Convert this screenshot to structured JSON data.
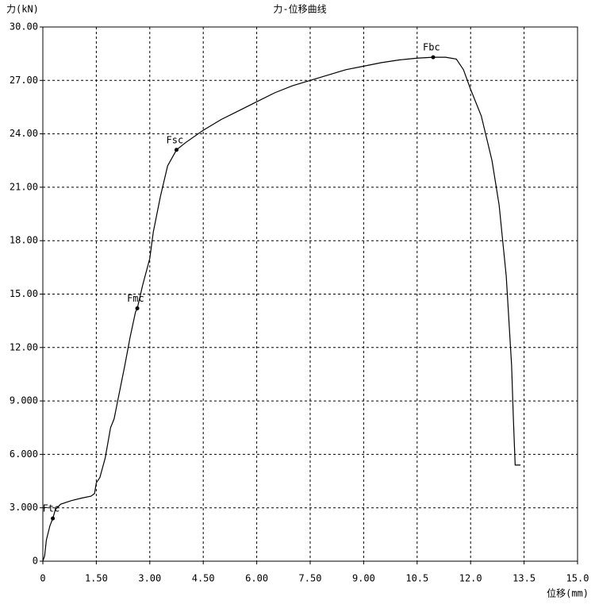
{
  "chart_data": {
    "type": "line",
    "title": "力-位移曲线",
    "x_label": "位移(mm)",
    "y_label": "力(kN)",
    "color": "#000000",
    "grid": true,
    "x": [
      0,
      0.05,
      0.1,
      0.2,
      0.28,
      0.35,
      0.5,
      0.8,
      1.1,
      1.35,
      1.45,
      1.5,
      1.6,
      1.75,
      1.9,
      2.0,
      2.2,
      2.3,
      2.45,
      2.6,
      2.65,
      2.8,
      3.0,
      3.1,
      3.3,
      3.5,
      3.75,
      4.0,
      4.5,
      5.0,
      5.5,
      6.0,
      6.5,
      7.0,
      7.5,
      8.0,
      8.5,
      9.0,
      9.5,
      10.0,
      10.5,
      10.95,
      11.3,
      11.6,
      11.8,
      12.0,
      12.3,
      12.6,
      12.8,
      13.0,
      13.15,
      13.2,
      13.25,
      13.4
    ],
    "values": [
      0,
      0.3,
      1.2,
      2.0,
      2.4,
      2.9,
      3.2,
      3.4,
      3.55,
      3.65,
      3.8,
      4.4,
      4.7,
      5.8,
      7.5,
      8.0,
      10.0,
      11.0,
      12.6,
      14.0,
      14.2,
      15.5,
      17.0,
      18.5,
      20.5,
      22.2,
      23.1,
      23.5,
      24.2,
      24.8,
      25.3,
      25.8,
      26.3,
      26.7,
      27.0,
      27.3,
      27.6,
      27.8,
      28.0,
      28.15,
      28.25,
      28.3,
      28.3,
      28.2,
      27.6,
      26.5,
      25.0,
      22.5,
      20.0,
      16.0,
      11.0,
      8.0,
      5.4,
      5.4
    ],
    "annotations": [
      {
        "text": "Ftc",
        "x": 0.28,
        "y": 2.4
      },
      {
        "text": "Fmc",
        "x": 2.65,
        "y": 14.2
      },
      {
        "text": "Fsc",
        "x": 3.75,
        "y": 23.1
      },
      {
        "text": "Fbc",
        "x": 10.95,
        "y": 28.3
      }
    ],
    "xlim": [
      0,
      15
    ],
    "ylim": [
      0,
      30
    ],
    "xticks": [
      0,
      {
        "value": 1.5,
        "label": "1.50"
      },
      {
        "value": 3,
        "label": "3.00"
      },
      {
        "value": 4.5,
        "label": "4.50"
      },
      {
        "value": 6,
        "label": "6.00"
      },
      {
        "value": 7.5,
        "label": "7.50"
      },
      {
        "value": 9,
        "label": "9.00"
      },
      10.5,
      {
        "value": 12,
        "label": "12.0"
      },
      13.5,
      {
        "value": 15,
        "label": "15.0"
      }
    ],
    "yticks": [
      0,
      {
        "value": 3,
        "label": "3.000"
      },
      {
        "value": 6,
        "label": "6.000"
      },
      {
        "value": 9,
        "label": "9.000"
      },
      {
        "value": 12,
        "label": "12.00"
      },
      {
        "value": 15,
        "label": "15.00"
      },
      {
        "value": 18,
        "label": "18.00"
      },
      {
        "value": 21,
        "label": "21.00"
      },
      {
        "value": 24,
        "label": "24.00"
      },
      {
        "value": 27,
        "label": "27.00"
      },
      {
        "value": 30,
        "label": "30.00"
      }
    ]
  }
}
